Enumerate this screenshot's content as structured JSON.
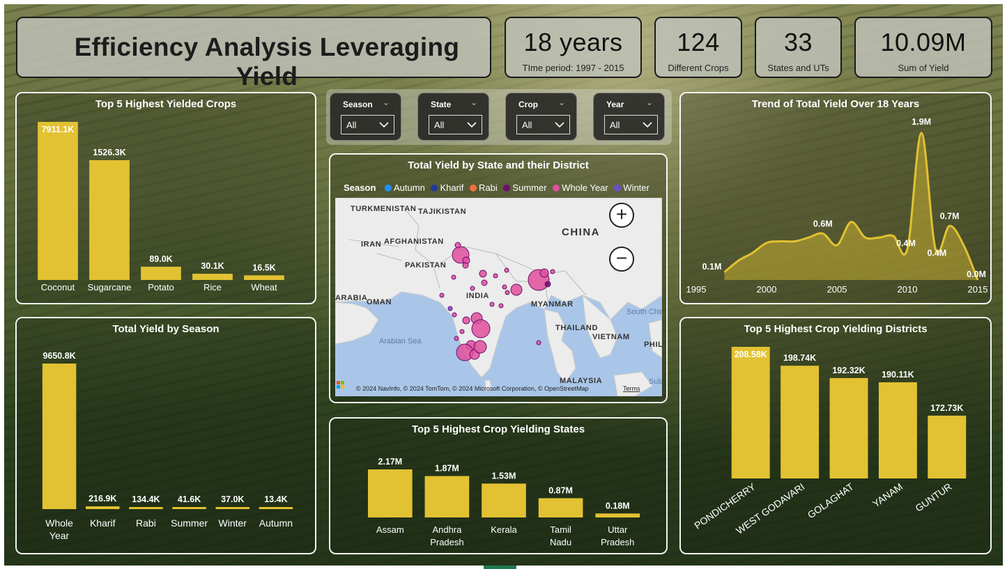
{
  "title": "Efficiency Analysis Leveraging Yield",
  "kpis": [
    {
      "value": "18 years",
      "label": "TIme period: 1997 - 2015"
    },
    {
      "value": "124",
      "label": "Different Crops"
    },
    {
      "value": "33",
      "label": "States and UTs"
    },
    {
      "value": "10.09M",
      "label": "Sum of Yield"
    }
  ],
  "slicers": [
    {
      "name": "Season",
      "value": "All"
    },
    {
      "name": "State",
      "value": "All"
    },
    {
      "name": "Crop",
      "value": "All"
    },
    {
      "name": "Year",
      "value": "All"
    }
  ],
  "colors": {
    "bar": "#e2c232",
    "line": "#e2c232",
    "panel_border": "#ffffff"
  },
  "map": {
    "title": "Total Yield by State and their District",
    "legend_title": "Season",
    "legend": [
      {
        "name": "Autumn",
        "color": "#1e90ff"
      },
      {
        "name": "Kharif",
        "color": "#1f3a9b"
      },
      {
        "name": "Rabi",
        "color": "#f07040"
      },
      {
        "name": "Summer",
        "color": "#6a0f6e"
      },
      {
        "name": "Whole Year",
        "color": "#e0509c"
      },
      {
        "name": "Winter",
        "color": "#6a4fd0"
      }
    ],
    "places": [
      "TURKMENISTAN",
      "TAJIKISTAN",
      "AFGHANISTAN",
      "IRAN",
      "PAKISTAN",
      "CHINA",
      "INDIA",
      "OMAN",
      "MYANMAR",
      "THAILAND",
      "VIETNAM",
      "MALAYSIA",
      "ARABIA",
      "PHIL",
      "Arabian Sea",
      "South China Sea",
      "Sula"
    ],
    "attribution": "© 2024 NavInfo, © 2024 TomTom, © 2024 Microsoft Corporation, © OpenStreetMap",
    "terms": "Terms",
    "bing_logo": "Microsoft Bing",
    "zoom_in": "+",
    "zoom_out": "−"
  },
  "chart_data": [
    {
      "id": "crops",
      "type": "bar",
      "title": "Top 5 Highest Yielded Crops",
      "categories": [
        "Coconut",
        "Sugarcane",
        "Potato",
        "Rice",
        "Wheat"
      ],
      "values": [
        7911.1,
        1526.3,
        89.0,
        30.1,
        16.5
      ],
      "labels": [
        "7911.1K",
        "1526.3K",
        "89.0K",
        "30.1K",
        "16.5K"
      ],
      "unit": "K",
      "note_axis": "broken scale"
    },
    {
      "id": "season",
      "type": "bar",
      "title": "Total Yield by Season",
      "categories": [
        "Whole Year",
        "Kharif",
        "Rabi",
        "Summer",
        "Winter",
        "Autumn"
      ],
      "values": [
        9650.8,
        216.9,
        134.4,
        41.6,
        37.0,
        13.4
      ],
      "labels": [
        "9650.8K",
        "216.9K",
        "134.4K",
        "41.6K",
        "37.0K",
        "13.4K"
      ],
      "unit": "K"
    },
    {
      "id": "states",
      "type": "bar",
      "title": "Top 5 Highest Crop Yielding States",
      "categories": [
        "Assam",
        "Andhra Pradesh",
        "Kerala",
        "Tamil Nadu",
        "Uttar Pradesh"
      ],
      "values": [
        2.17,
        1.87,
        1.53,
        0.87,
        0.18
      ],
      "labels": [
        "2.17M",
        "1.87M",
        "1.53M",
        "0.87M",
        "0.18M"
      ],
      "unit": "M"
    },
    {
      "id": "trend",
      "type": "area",
      "title": "Trend of Total Yield Over 18 Years",
      "x": [
        1997,
        1998,
        1999,
        2000,
        2001,
        2002,
        2003,
        2004,
        2005,
        2006,
        2007,
        2008,
        2009,
        2010,
        2011,
        2012,
        2013,
        2014,
        2015
      ],
      "y": [
        0.1,
        0.25,
        0.35,
        0.48,
        0.5,
        0.5,
        0.55,
        0.6,
        0.45,
        0.75,
        0.55,
        0.55,
        0.57,
        0.4,
        1.9,
        0.4,
        0.7,
        0.45,
        0.0
      ],
      "xlim": [
        1995,
        2015
      ],
      "xticks": [
        1995,
        2000,
        2005,
        2010,
        2015
      ],
      "ylim": [
        0,
        2.0
      ],
      "point_labels": [
        {
          "x": 1997,
          "text": "0.1M"
        },
        {
          "x": 2004,
          "text": "0.6M"
        },
        {
          "x": 2010,
          "text": "0.4M"
        },
        {
          "x": 2011,
          "text": "1.9M"
        },
        {
          "x": 2012,
          "text": "0.4M"
        },
        {
          "x": 2013,
          "text": "0.7M"
        },
        {
          "x": 2015,
          "text": "0.0M"
        }
      ],
      "unit": "M"
    },
    {
      "id": "districts",
      "type": "bar",
      "title": "Top 5 Highest Crop Yielding Districts",
      "categories": [
        "PONDICHERRY",
        "WEST GODAVARI",
        "GOLAGHAT",
        "YANAM",
        "GUNTUR"
      ],
      "values": [
        208.58,
        198.74,
        192.32,
        190.11,
        172.73
      ],
      "labels": [
        "208.58K",
        "198.74K",
        "192.32K",
        "190.11K",
        "172.73K"
      ],
      "unit": "K"
    }
  ]
}
